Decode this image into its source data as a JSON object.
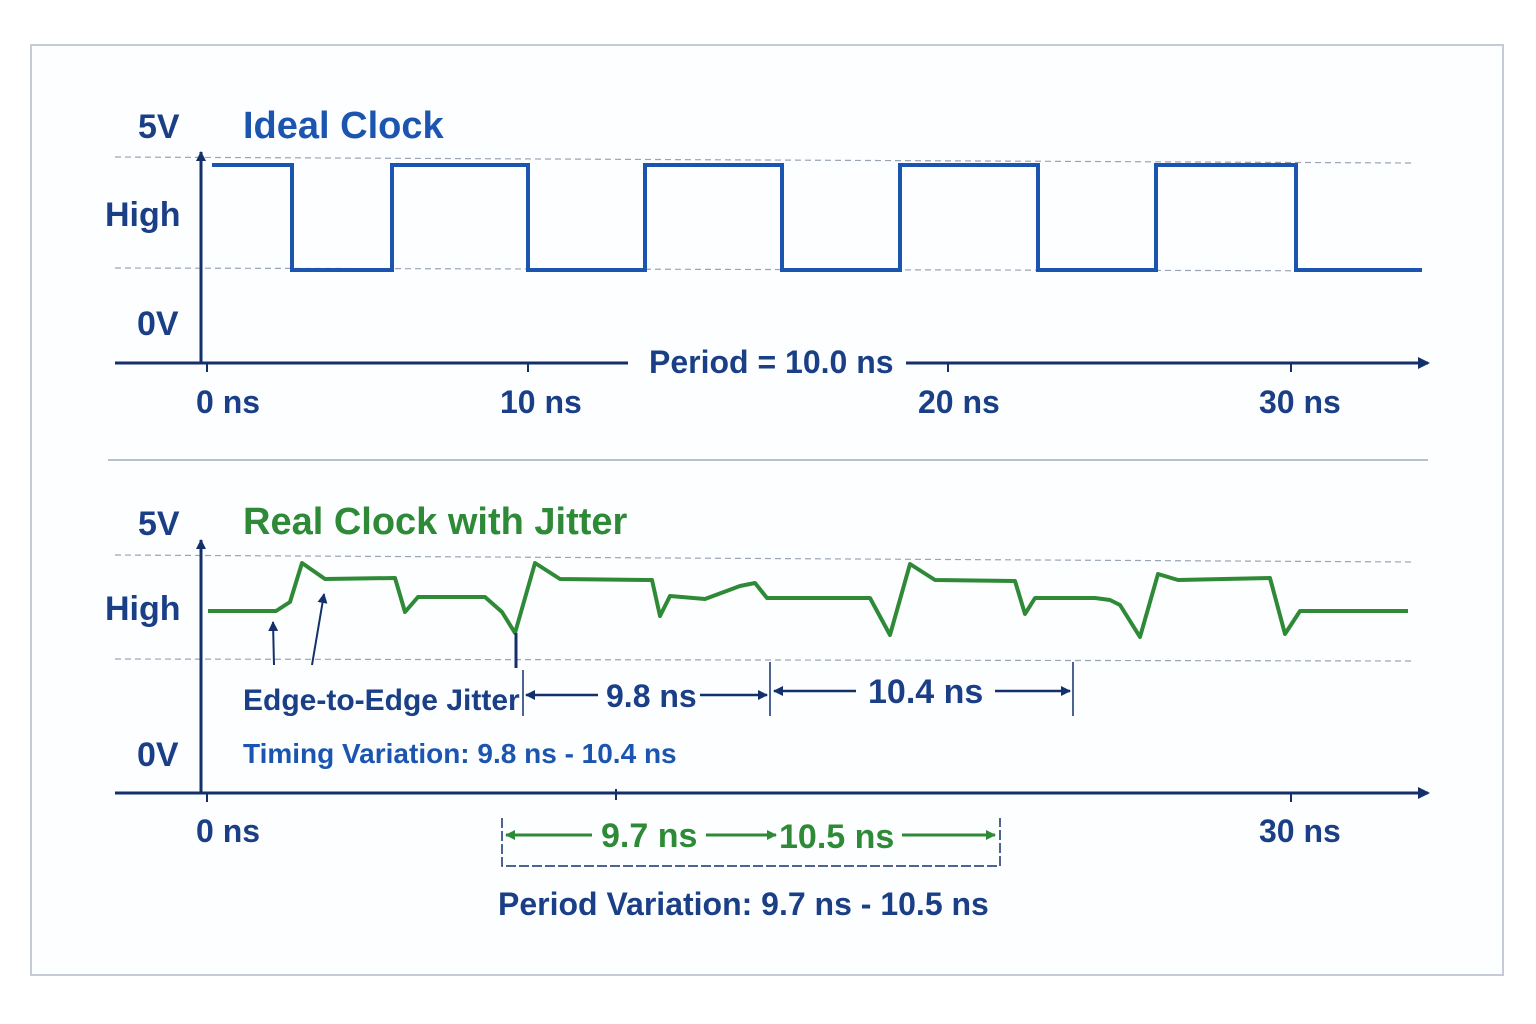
{
  "ideal": {
    "title": "Ideal Clock",
    "label_5v": "5V",
    "label_high": "High",
    "label_0v": "0V",
    "period_label": "Period = 10.0 ns",
    "ticks": [
      "0 ns",
      "10 ns",
      "20 ns",
      "30 ns"
    ]
  },
  "real": {
    "title": "Real Clock with Jitter",
    "label_5v": "5V",
    "label_high": "High",
    "label_0v": "0V",
    "edge_jitter_label": "Edge-to-Edge Jitter",
    "timing_variation_label": "Timing Variation: 9.8 ns - 10.4 ns",
    "measure_1": "9.8 ns",
    "measure_2": "10.4 ns",
    "measure_3": "9.7 ns",
    "measure_4": "10.5 ns",
    "period_variation_label": "Period Variation: 9.7 ns - 10.5 ns",
    "ticks": [
      "0 ns",
      "30 ns"
    ]
  },
  "colors": {
    "ideal_wave": "#1b55b0",
    "real_wave": "#2e8a36",
    "axis": "#14306b",
    "text": "#1a3f86",
    "gridline": "#9aa4b3"
  }
}
